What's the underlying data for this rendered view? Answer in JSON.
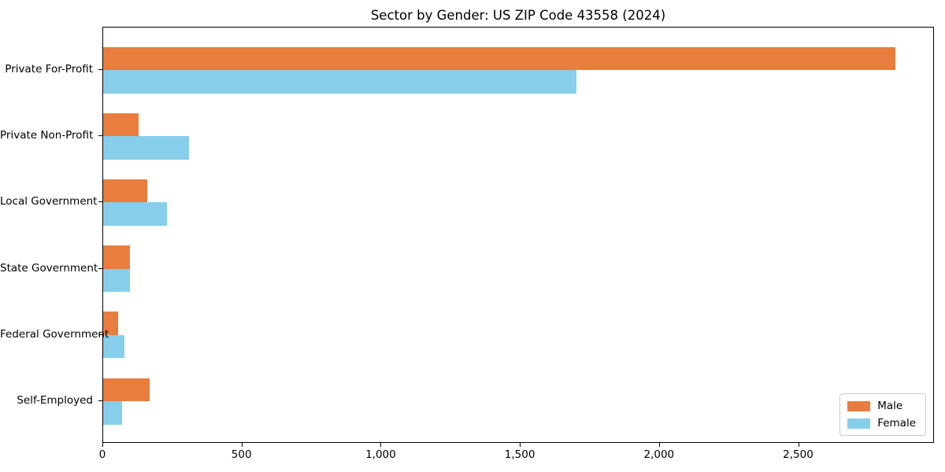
{
  "chart_data": {
    "type": "bar",
    "orientation": "horizontal",
    "title": "Sector by Gender: US ZIP Code 43558 (2024)",
    "categories": [
      "Private For-Profit",
      "Private Non-Profit",
      "Local Government",
      "State Government",
      "Federal Government",
      "Self-Employed"
    ],
    "series": [
      {
        "name": "Male",
        "color": "#e87d3d",
        "values": [
          2846,
          128,
          157,
          95,
          55,
          168
        ]
      },
      {
        "name": "Female",
        "color": "#87ceeb",
        "values": [
          1701,
          309,
          228,
          97,
          75,
          68
        ]
      }
    ],
    "xlabel": "",
    "ylabel": "",
    "xlim": [
      0,
      2988
    ],
    "xticks": [
      0,
      500,
      1000,
      1500,
      2000,
      2500
    ],
    "xtick_labels": [
      "0",
      "500",
      "1,000",
      "1,500",
      "2,000",
      "2,500"
    ],
    "grid": false,
    "legend_position": "lower right",
    "colors": {
      "axis": "#000000",
      "legend_border": "#cccccc",
      "background": "#ffffff"
    }
  }
}
